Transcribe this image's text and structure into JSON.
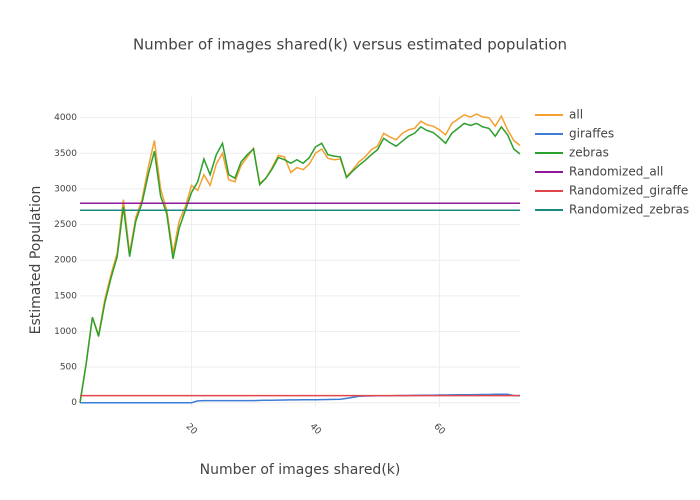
{
  "chart_data": {
    "type": "line",
    "title": "Number of images shared(k) versus estimated population",
    "x_label": "Number of images shared(k)",
    "y_label": "Estimated Population",
    "x": [
      2,
      3,
      4,
      5,
      6,
      7,
      8,
      9,
      10,
      11,
      12,
      13,
      14,
      15,
      16,
      17,
      18,
      19,
      20,
      21,
      22,
      23,
      24,
      25,
      26,
      27,
      28,
      29,
      30,
      31,
      32,
      33,
      34,
      35,
      36,
      37,
      38,
      39,
      40,
      41,
      42,
      43,
      44,
      45,
      46,
      47,
      48,
      49,
      50,
      51,
      52,
      53,
      54,
      55,
      56,
      57,
      58,
      59,
      60,
      61,
      62,
      63,
      64,
      65,
      66,
      67,
      68,
      69,
      70,
      71,
      72,
      73
    ],
    "series": [
      {
        "name": "all",
        "color": "#f5a030",
        "values": [
          0,
          550,
          1200,
          950,
          1450,
          1800,
          2100,
          2850,
          2100,
          2600,
          2850,
          3300,
          3680,
          3000,
          2700,
          2100,
          2550,
          2750,
          3050,
          2980,
          3200,
          3050,
          3350,
          3500,
          3130,
          3100,
          3330,
          3450,
          3570,
          3080,
          3150,
          3300,
          3470,
          3450,
          3230,
          3300,
          3270,
          3350,
          3500,
          3560,
          3430,
          3410,
          3420,
          3170,
          3270,
          3380,
          3450,
          3550,
          3600,
          3780,
          3730,
          3690,
          3780,
          3830,
          3850,
          3950,
          3900,
          3880,
          3830,
          3760,
          3920,
          3980,
          4040,
          4010,
          4050,
          4010,
          4000,
          3880,
          4020,
          3830,
          3680,
          3610
        ]
      },
      {
        "name": "giraffes",
        "color": "#3d7dd8",
        "values": [
          0,
          0,
          0,
          0,
          0,
          0,
          0,
          0,
          0,
          0,
          0,
          0,
          0,
          0,
          0,
          0,
          0,
          0,
          0,
          25,
          30,
          30,
          30,
          30,
          30,
          30,
          30,
          30,
          30,
          32,
          34,
          36,
          37,
          38,
          39,
          40,
          41,
          42,
          43,
          44,
          45,
          46,
          48,
          60,
          75,
          90,
          95,
          96,
          97,
          98,
          99,
          100,
          101,
          102,
          103,
          104,
          105,
          106,
          108,
          109,
          110,
          111,
          112,
          113,
          114,
          115,
          116,
          118,
          120,
          118,
          100,
          100
        ]
      },
      {
        "name": "zebras",
        "color": "#2ca02c",
        "values": [
          0,
          550,
          1200,
          930,
          1400,
          1750,
          2050,
          2750,
          2050,
          2550,
          2800,
          3200,
          3530,
          2900,
          2650,
          2020,
          2450,
          2700,
          2950,
          3100,
          3420,
          3200,
          3480,
          3640,
          3200,
          3150,
          3380,
          3480,
          3560,
          3060,
          3150,
          3280,
          3440,
          3410,
          3360,
          3410,
          3360,
          3440,
          3590,
          3640,
          3480,
          3460,
          3450,
          3160,
          3250,
          3330,
          3400,
          3480,
          3550,
          3710,
          3650,
          3600,
          3670,
          3740,
          3780,
          3870,
          3820,
          3790,
          3720,
          3640,
          3780,
          3850,
          3920,
          3890,
          3920,
          3870,
          3850,
          3740,
          3870,
          3760,
          3560,
          3490
        ]
      },
      {
        "name": "Randomized_all",
        "color": "#8e1a9a",
        "x": [
          2,
          73
        ],
        "values": [
          2800,
          2800
        ]
      },
      {
        "name": "Randomized_giraffe",
        "color": "#e0464a",
        "x": [
          2,
          73
        ],
        "values": [
          100,
          100
        ]
      },
      {
        "name": "Randomized_zebras",
        "color": "#1a8a80",
        "x": [
          2,
          73
        ],
        "values": [
          2700,
          2700
        ]
      }
    ],
    "xlim": [
      2,
      73
    ],
    "xticks": [
      20,
      40,
      60
    ],
    "ylim": [
      -60,
      4290
    ],
    "yticks": [
      0,
      500,
      1000,
      1500,
      2000,
      2500,
      3000,
      3500,
      4000
    ],
    "grid": true,
    "legend": "right"
  }
}
